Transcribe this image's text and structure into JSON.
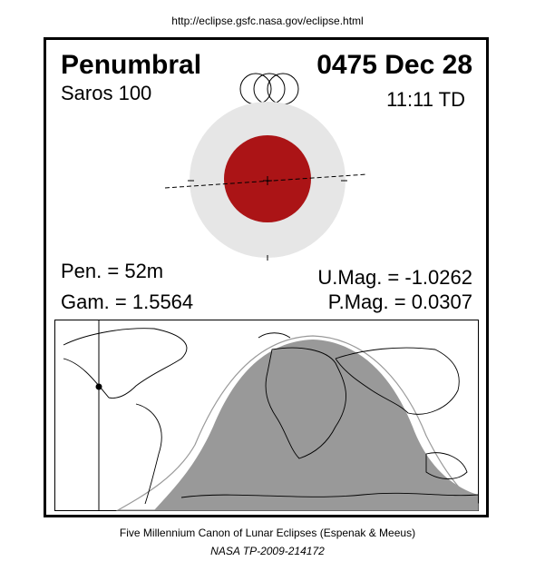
{
  "header": {
    "url": "http://eclipse.gsfc.nasa.gov/eclipse.html"
  },
  "eclipse": {
    "type": "Penumbral",
    "date": "0475 Dec 28",
    "saros": "Saros 100",
    "time": "11:11 TD",
    "pen": "Pen. = 52m",
    "gam": "Gam. = 1.5564",
    "umag": "U.Mag. = -1.0262",
    "pmag": "P.Mag. = 0.0307"
  },
  "footer": {
    "title": "Five Millennium Canon of Lunar Eclipses (Espenak & Meeus)",
    "reference": "NASA TP-2009-214172"
  }
}
